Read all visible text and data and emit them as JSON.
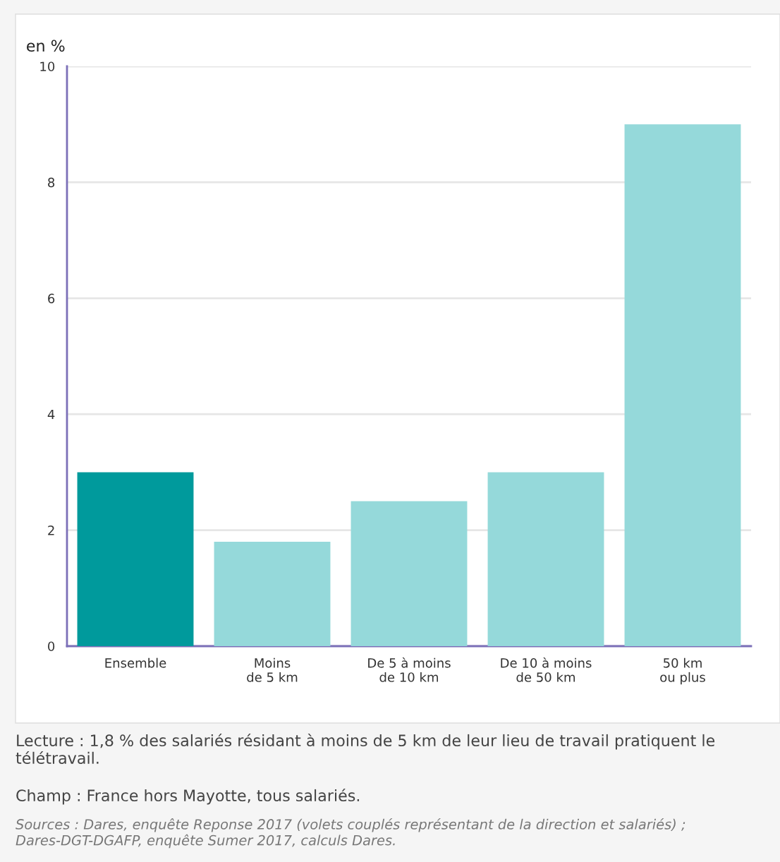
{
  "chart_data": {
    "type": "bar",
    "ylabel": "en %",
    "categories": [
      "Ensemble",
      "Moins\nde 5 km",
      "De 5 à moins\nde 10 km",
      "De 10 à moins\nde 50 km",
      "50 km\nou plus"
    ],
    "values": [
      3.0,
      1.8,
      2.5,
      3.0,
      9.0
    ],
    "colors": [
      "#009a9c",
      "#95d9da",
      "#95d9da",
      "#95d9da",
      "#95d9da"
    ],
    "ylim": [
      0,
      10
    ],
    "yticks": [
      0,
      2,
      4,
      6,
      8,
      10
    ],
    "grid": "y",
    "legend": false,
    "annotations": [
      "Lecture : 1,8 % des salariés résidant à moins de 5 km de leur lieu de travail pratiquent le télétravail.",
      "Champ : France hors Mayotte, tous salariés.",
      "Sources : Dares, enquête Reponse 2017 (volets couplés représentant de la direction et salariés) ; Dares-DGT-DGAFP, enquête Sumer 2017, calculs Dares."
    ]
  }
}
